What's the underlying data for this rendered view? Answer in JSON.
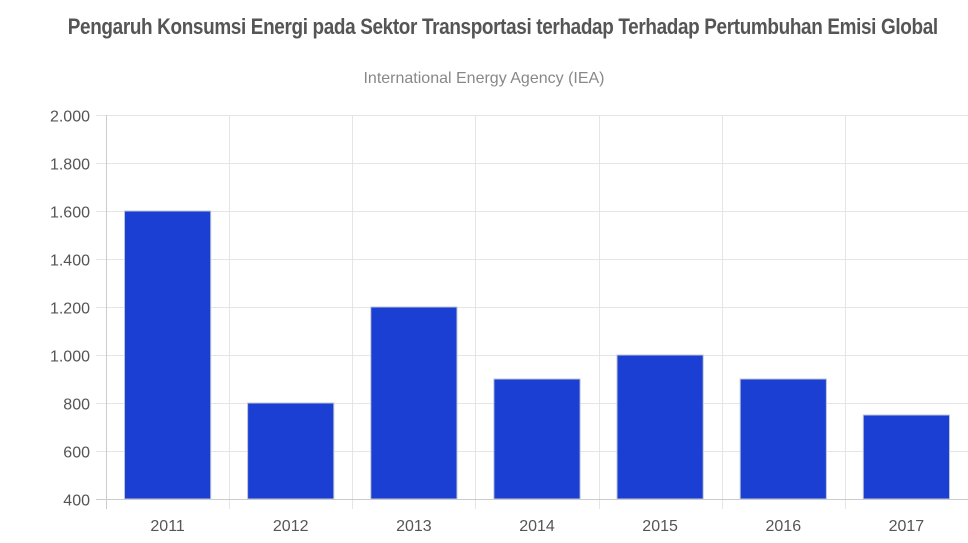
{
  "header": {
    "title": "Pengaruh Konsumsi Energi pada Sektor Transportasi terhadap Terhadap Pertumbuhan Emisi Global",
    "subtitle": "International Energy Agency (IEA)"
  },
  "colors": {
    "bar_fill": "#1b3fd3",
    "bar_stroke": "#bcc4d6",
    "grid": "#e5e5e5",
    "axis": "#cccccc",
    "tick_text": "#555555"
  },
  "chart_data": {
    "type": "bar",
    "title": "Pengaruh Konsumsi Energi pada Sektor Transportasi terhadap Terhadap Pertumbuhan Emisi Global",
    "subtitle": "International Energy Agency (IEA)",
    "categories": [
      "2011",
      "2012",
      "2013",
      "2014",
      "2015",
      "2016",
      "2017"
    ],
    "values": [
      1600,
      800,
      1200,
      900,
      1000,
      900,
      750
    ],
    "ylim": [
      400,
      2000
    ],
    "y_ticks": [
      400,
      600,
      800,
      1000,
      1200,
      1400,
      1600,
      1800,
      2000
    ],
    "y_tick_labels": [
      "400",
      "600",
      "800",
      "1.000",
      "1.200",
      "1.400",
      "1.600",
      "1.800",
      "2.000"
    ],
    "grid": true,
    "legend": "none",
    "xlabel": "",
    "ylabel": ""
  }
}
